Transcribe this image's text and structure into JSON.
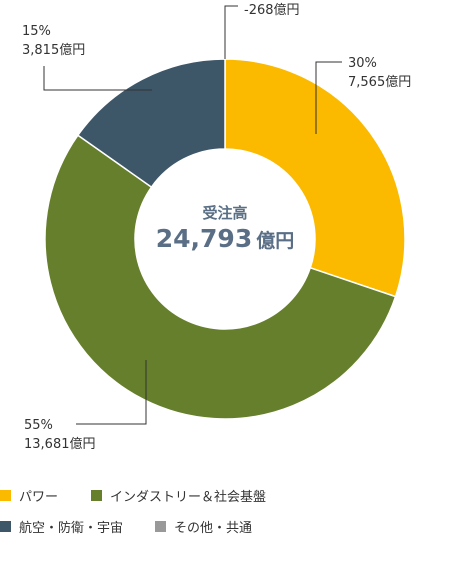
{
  "chart_data": {
    "type": "pie",
    "title": "受注高",
    "total": {
      "value": "24,793",
      "unit": "億円"
    },
    "slices": [
      {
        "name": "パワー",
        "percent": 30,
        "value": 7565,
        "label_pct": "30%",
        "label_amt": "7,565億円",
        "color": "#fbb900"
      },
      {
        "name": "インダストリー＆社会基盤",
        "percent": 55,
        "value": 13681,
        "label_pct": "55%",
        "label_amt": "13,681億円",
        "color": "#667f2c"
      },
      {
        "name": "航空・防衛・宇宙",
        "percent": 15,
        "value": 3815,
        "label_pct": "15%",
        "label_amt": "3,815億円",
        "color": "#3d5668"
      },
      {
        "name": "その他・共通",
        "percent": 0,
        "value": -268,
        "label_pct": "",
        "label_amt": "-268億円",
        "color": "#999999"
      }
    ]
  },
  "legend": [
    {
      "label": "パワー",
      "color": "#fbb900"
    },
    {
      "label": "インダストリー＆社会基盤",
      "color": "#667f2c"
    },
    {
      "label": "航空・防衛・宇宙",
      "color": "#3d5668"
    },
    {
      "label": "その他・共通",
      "color": "#999999"
    }
  ]
}
